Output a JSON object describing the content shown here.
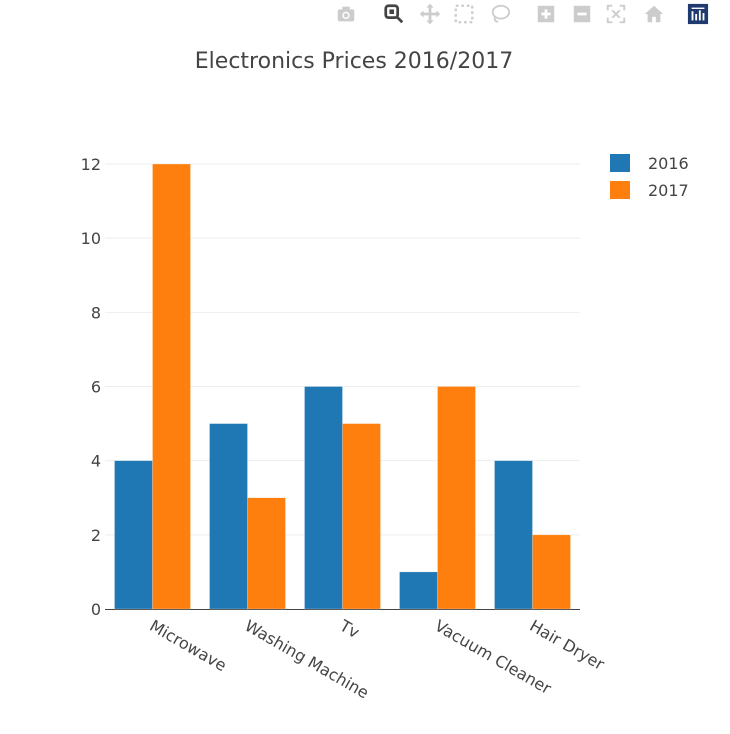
{
  "modebar": {
    "buttons": [
      {
        "icon": "camera-icon",
        "active": false
      },
      {
        "icon": "zoom-icon",
        "active": true
      },
      {
        "icon": "pan-icon",
        "active": false
      },
      {
        "icon": "box-select-icon",
        "active": false
      },
      {
        "icon": "lasso-select-icon",
        "active": false
      },
      {
        "icon": "zoom-in-icon",
        "active": false
      },
      {
        "icon": "zoom-out-icon",
        "active": false
      },
      {
        "icon": "autoscale-icon",
        "active": false
      },
      {
        "icon": "reset-axes-icon",
        "active": false
      },
      {
        "icon": "plotly-logo-icon",
        "active": false
      }
    ]
  },
  "chart_data": {
    "type": "bar",
    "title": "Electronics Prices 2016/2017",
    "categories": [
      "Microwave",
      "Washing Machine",
      "Tv",
      "Vacuum Cleaner",
      "Hair Dryer"
    ],
    "series": [
      {
        "name": "2016",
        "values": [
          4,
          5,
          6,
          1,
          4
        ],
        "color": "#1f77b4"
      },
      {
        "name": "2017",
        "values": [
          12,
          3,
          5,
          6,
          2
        ],
        "color": "#ff7f0e"
      }
    ],
    "ylim": [
      0,
      12.6
    ],
    "yticks": [
      "0",
      "2",
      "4",
      "6",
      "8",
      "10",
      "12"
    ],
    "grid": true,
    "legend": "top-right",
    "xlabel": "",
    "ylabel": ""
  }
}
